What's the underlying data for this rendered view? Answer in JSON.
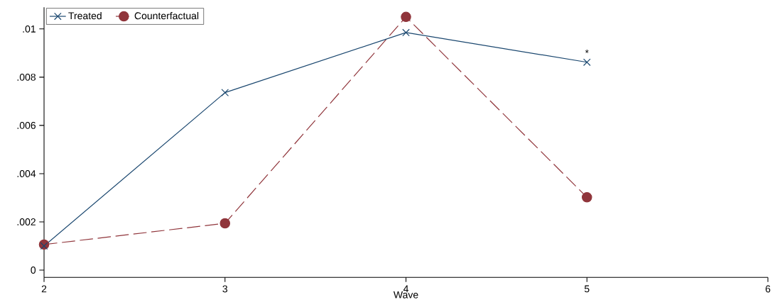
{
  "chart_data": {
    "type": "line",
    "xlabel": "Wave",
    "x": [
      2,
      3,
      4,
      5
    ],
    "series": [
      {
        "name": "Treated",
        "color": "#1a476f",
        "values": [
          0.001,
          0.00736,
          0.00985,
          0.00862
        ],
        "marker": "cross",
        "line_style": "solid"
      },
      {
        "name": "Counterfactual",
        "color": "#90353b",
        "values": [
          0.00106,
          0.00194,
          0.0105,
          0.00302
        ],
        "marker": "circle",
        "line_style": "dashed"
      }
    ],
    "xlim": [
      2,
      6
    ],
    "xticks": [
      2,
      3,
      4,
      5,
      6
    ],
    "ylim": [
      -0.0003,
      0.0109
    ],
    "yticks": [
      0,
      {
        "value": 0.002,
        "label": ".002"
      },
      {
        "value": 0.004,
        "label": ".004"
      },
      {
        "value": 0.006,
        "label": ".006"
      },
      {
        "value": 0.008,
        "label": ".008"
      },
      {
        "value": 0.01,
        "label": ".01"
      }
    ],
    "annotations": [
      "*"
    ],
    "legend": "top left"
  }
}
